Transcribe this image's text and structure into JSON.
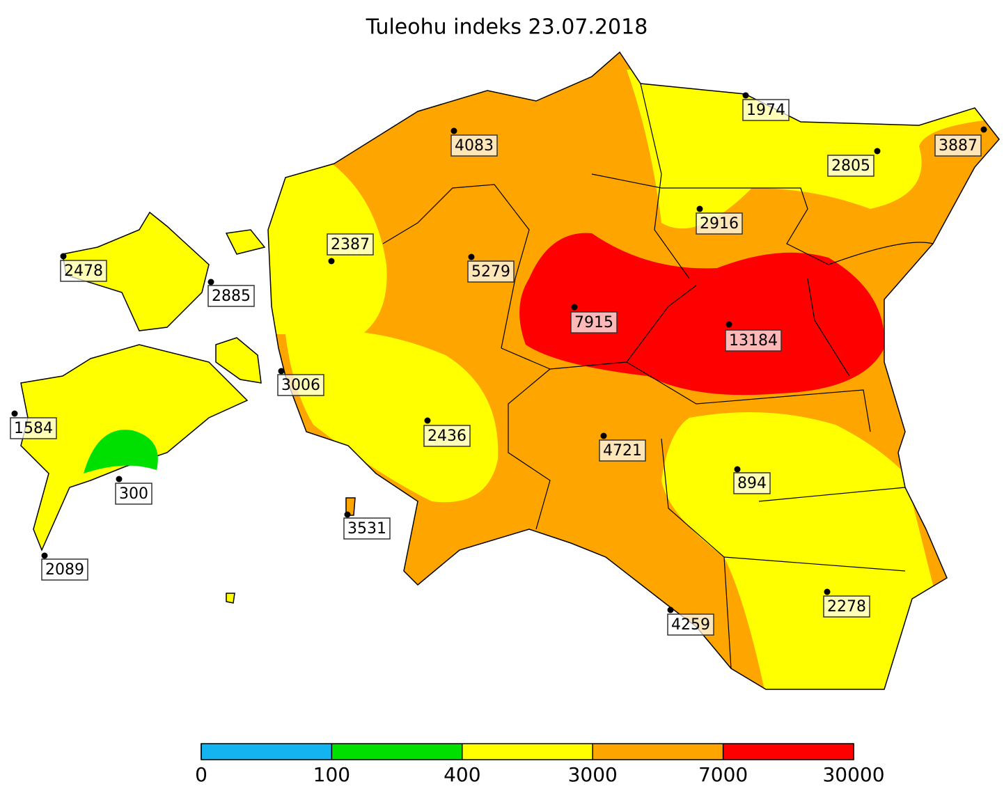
{
  "title": "Tuleohu indeks 23.07.2018",
  "stations": [
    1974,
    4083,
    3887,
    2805,
    2916,
    2387,
    5279,
    2478,
    2885,
    7915,
    13184,
    3006,
    1584,
    2436,
    4721,
    300,
    894,
    3531,
    2089,
    2278,
    4259
  ],
  "colorbar": {
    "ticks": [
      0,
      100,
      400,
      3000,
      7000,
      30000
    ],
    "colors": [
      "#14b4f0",
      "#00e000",
      "#ffff00",
      "#ffa500",
      "#ff0000"
    ]
  }
}
